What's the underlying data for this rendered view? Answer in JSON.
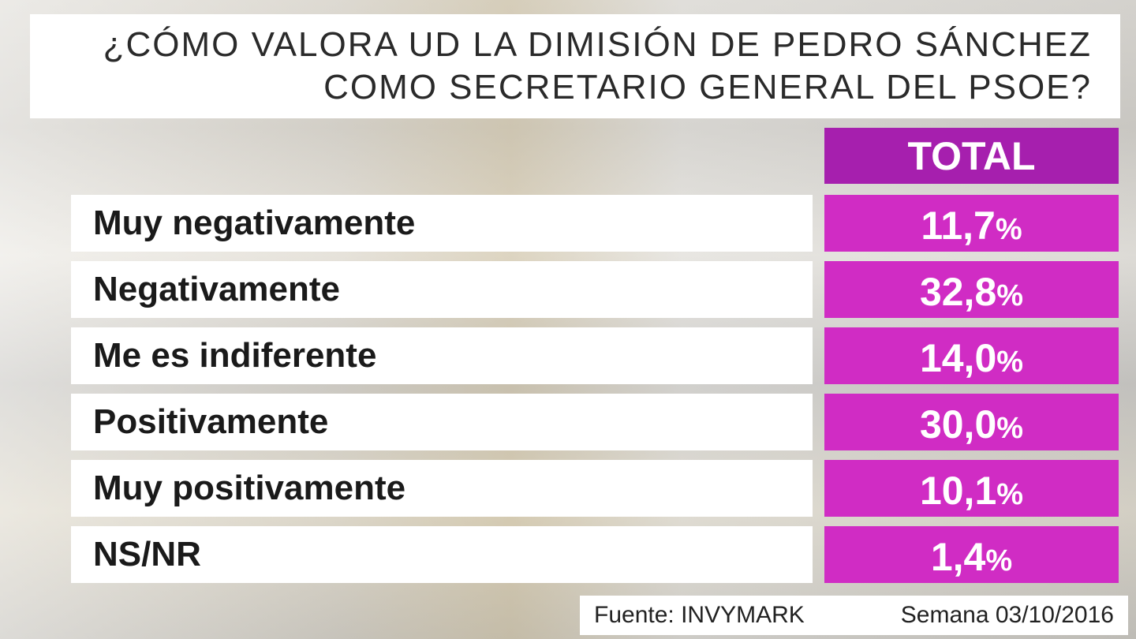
{
  "header": {
    "title_lines": [
      "¿CÓMO VALORA UD LA DIMISIÓN DE PEDRO SÁNCHEZ",
      "COMO SECRETARIO GENERAL DEL PSOE?"
    ]
  },
  "table": {
    "column_header": "TOTAL",
    "rows": [
      {
        "label": "Muy negativamente",
        "value": "11,7",
        "unit": "%"
      },
      {
        "label": "Negativamente",
        "value": "32,8",
        "unit": "%"
      },
      {
        "label": "Me es indiferente",
        "value": "14,0",
        "unit": "%"
      },
      {
        "label": "Positivamente",
        "value": "30,0",
        "unit": "%"
      },
      {
        "label": "Muy positivamente",
        "value": "10,1",
        "unit": "%"
      },
      {
        "label": "NS/NR",
        "value": "1,4",
        "unit": "%"
      }
    ]
  },
  "footer": {
    "source": "Fuente: INVYMARK",
    "date": "Semana 03/10/2016"
  }
}
